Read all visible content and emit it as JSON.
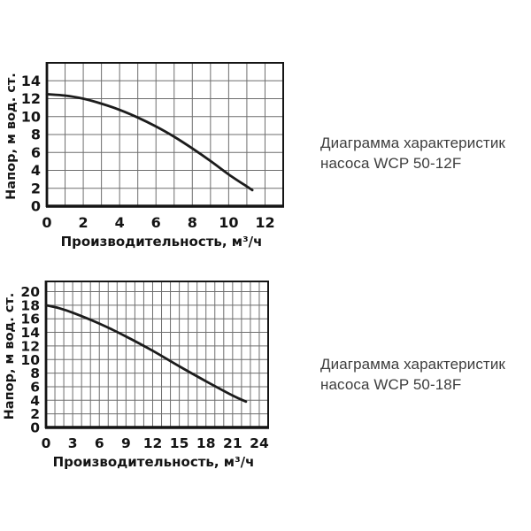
{
  "figure": {
    "background": "#ffffff"
  },
  "colors": {
    "curve": "#1c1c1c",
    "grid": "#6e6e6e",
    "axis": "#141414",
    "tick_label": "#141414",
    "axis_label": "#141414",
    "title_text": "#3d3d3d"
  },
  "chart_data": [
    {
      "type": "line",
      "title": "Диаграмма характеристик насоса WCP 50-12F",
      "title_lines": [
        "Диаграмма характеристик",
        "насоса WCP 50-12F"
      ],
      "xlabel": "Производительность,  м³/ч",
      "ylabel": "Напор,  м вод. ст.",
      "xlim": [
        0,
        13
      ],
      "ylim": [
        0,
        16
      ],
      "x_ticks": [
        0,
        2,
        4,
        6,
        8,
        10,
        12
      ],
      "y_ticks": [
        0,
        2,
        4,
        6,
        8,
        10,
        12,
        14
      ],
      "x_grid_step": 1,
      "y_grid_step": 2,
      "grid": true,
      "legend": false,
      "curve_points": [
        [
          0,
          12.5
        ],
        [
          1,
          12.35
        ],
        [
          2,
          12.0
        ],
        [
          3,
          11.45
        ],
        [
          4,
          10.75
        ],
        [
          5,
          9.9
        ],
        [
          6,
          8.9
        ],
        [
          7,
          7.75
        ],
        [
          8,
          6.45
        ],
        [
          9,
          5.05
        ],
        [
          10,
          3.55
        ],
        [
          11,
          2.2
        ],
        [
          11.3,
          1.8
        ]
      ]
    },
    {
      "type": "line",
      "title": "Диаграмма характеристик насоса WCP 50-18F",
      "title_lines": [
        "Диаграмма характеристик",
        "насоса WCP 50-18F"
      ],
      "xlabel": "Производительность,  м³/ч",
      "ylabel": "Напор,  м вод. ст.",
      "xlim": [
        0,
        25
      ],
      "ylim": [
        0,
        21.5
      ],
      "x_ticks": [
        0,
        3,
        6,
        9,
        12,
        15,
        18,
        21,
        24
      ],
      "y_ticks": [
        0,
        2,
        4,
        6,
        8,
        10,
        12,
        14,
        16,
        18,
        20
      ],
      "x_grid_step": 1,
      "y_grid_step": 2,
      "grid": true,
      "legend": false,
      "curve_points": [
        [
          0,
          18.0
        ],
        [
          1.5,
          17.55
        ],
        [
          3,
          16.9
        ],
        [
          6,
          15.3
        ],
        [
          9,
          13.4
        ],
        [
          12,
          11.3
        ],
        [
          15,
          9.0
        ],
        [
          18,
          6.8
        ],
        [
          21,
          4.7
        ],
        [
          22.5,
          3.8
        ]
      ]
    }
  ]
}
